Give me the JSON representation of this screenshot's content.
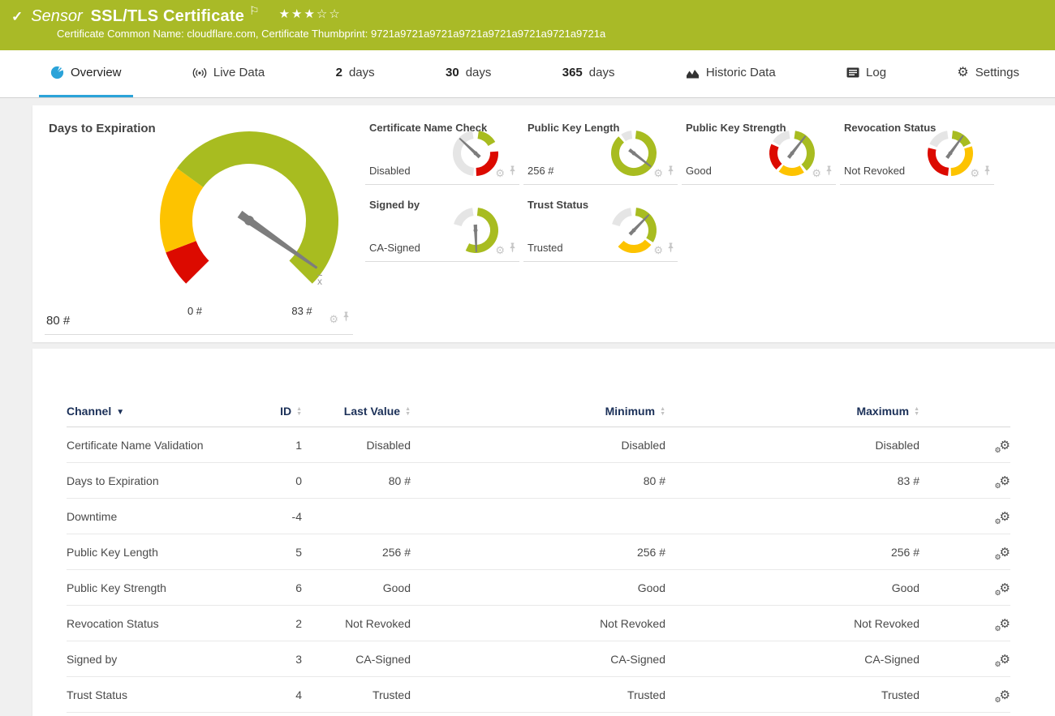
{
  "colors": {
    "header_bg": "#a9ba27",
    "accent_blue": "#2ba3d9",
    "navy": "#1b3058",
    "green": "#a8bc20",
    "yellow": "#fdc300",
    "red": "#dc0a00",
    "gray_segment": "#e5e5e5",
    "needle": "#7d7d7d"
  },
  "icons": {
    "check": "✓",
    "flag": "⚐",
    "star_filled": "★",
    "star_empty": "☆",
    "gear": "⚙",
    "sort_up": "▲",
    "sort_down": "▼"
  },
  "header": {
    "kind": "Sensor",
    "title": "SSL/TLS Certificate",
    "stars_filled": 3,
    "stars_total": 5,
    "subtitle": "Certificate Common Name: cloudflare.com, Certificate Thumbprint: 9721a9721a9721a9721a9721a9721a9721a9721a"
  },
  "tabs": [
    {
      "id": "overview",
      "icon": "gauge-icon",
      "label": "Overview",
      "active": true
    },
    {
      "id": "live-data",
      "icon": "live-data-icon",
      "label": "Live Data",
      "active": false
    },
    {
      "id": "2-days",
      "num": "2",
      "label": "days",
      "active": false
    },
    {
      "id": "30-days",
      "num": "30",
      "label": "days",
      "active": false
    },
    {
      "id": "365-days",
      "num": "365",
      "label": "days",
      "active": false
    },
    {
      "id": "historic-data",
      "icon": "historic-data-icon",
      "label": "Historic Data",
      "active": false
    },
    {
      "id": "log",
      "icon": "log-icon",
      "label": "Log",
      "active": false
    },
    {
      "id": "settings",
      "icon": "settings-icon",
      "label": "Settings",
      "active": false
    }
  ],
  "gauges": {
    "main": {
      "title": "Days to Expiration",
      "value_label": "80 #",
      "min_label": "0 #",
      "max_label": "83 #",
      "mean_label": "x",
      "needle_deg": 125,
      "segments": [
        {
          "color": "red",
          "from": -135,
          "to": -111
        },
        {
          "color": "yellow",
          "from": -111,
          "to": -54
        },
        {
          "color": "green",
          "from": -54,
          "to": 135
        }
      ]
    },
    "small": [
      {
        "title": "Certificate Name Check",
        "value": "Disabled",
        "needle_deg": -47,
        "segments": [
          {
            "color": "green",
            "from": 8,
            "to": 60
          },
          {
            "color": "red",
            "from": 85,
            "to": 178
          },
          {
            "color": "gray_segment",
            "from": 186,
            "to": 352
          }
        ]
      },
      {
        "title": "Public Key Length",
        "value": "256 #",
        "needle_deg": 128,
        "segments": [
          {
            "color": "green",
            "from": 6,
            "to": 318
          },
          {
            "color": "gray_segment",
            "from": 326,
            "to": 354
          }
        ]
      },
      {
        "title": "Public Key Strength",
        "value": "Good",
        "needle_deg": 38,
        "segments": [
          {
            "color": "green",
            "from": 8,
            "to": 140
          },
          {
            "color": "yellow",
            "from": 148,
            "to": 216
          },
          {
            "color": "red",
            "from": 224,
            "to": 294
          },
          {
            "color": "gray_segment",
            "from": 302,
            "to": 352
          }
        ]
      },
      {
        "title": "Revocation Status",
        "value": "Not Revoked",
        "needle_deg": 36,
        "segments": [
          {
            "color": "green",
            "from": 6,
            "to": 64
          },
          {
            "color": "yellow",
            "from": 72,
            "to": 178
          },
          {
            "color": "red",
            "from": 186,
            "to": 284
          },
          {
            "color": "gray_segment",
            "from": 294,
            "to": 352
          }
        ]
      },
      {
        "title": "Signed by",
        "value": "CA-Signed",
        "needle_deg": 178,
        "segments": [
          {
            "color": "green",
            "from": 6,
            "to": 206
          },
          {
            "color": "gray_segment",
            "from": 286,
            "to": 352
          }
        ]
      },
      {
        "title": "Trust Status",
        "value": "Trusted",
        "needle_deg": 44,
        "segments": [
          {
            "color": "green",
            "from": 6,
            "to": 122
          },
          {
            "color": "yellow",
            "from": 130,
            "to": 224
          },
          {
            "color": "gray_segment",
            "from": 286,
            "to": 352
          }
        ]
      }
    ]
  },
  "channel_table": {
    "columns": [
      {
        "label": "Channel",
        "sort": "active"
      },
      {
        "label": "ID",
        "sort": "neutral"
      },
      {
        "label": "Last Value",
        "sort": "neutral"
      },
      {
        "label": "Minimum",
        "sort": "neutral"
      },
      {
        "label": "Maximum",
        "sort": "neutral"
      }
    ],
    "rows": [
      {
        "channel": "Certificate Name Validation",
        "id": "1",
        "last": "Disabled",
        "min": "Disabled",
        "max": "Disabled"
      },
      {
        "channel": "Days to Expiration",
        "id": "0",
        "last": "80 #",
        "min": "80 #",
        "max": "83 #"
      },
      {
        "channel": "Downtime",
        "id": "-4",
        "last": "",
        "min": "",
        "max": ""
      },
      {
        "channel": "Public Key Length",
        "id": "5",
        "last": "256 #",
        "min": "256 #",
        "max": "256 #"
      },
      {
        "channel": "Public Key Strength",
        "id": "6",
        "last": "Good",
        "min": "Good",
        "max": "Good"
      },
      {
        "channel": "Revocation Status",
        "id": "2",
        "last": "Not Revoked",
        "min": "Not Revoked",
        "max": "Not Revoked"
      },
      {
        "channel": "Signed by",
        "id": "3",
        "last": "CA-Signed",
        "min": "CA-Signed",
        "max": "CA-Signed"
      },
      {
        "channel": "Trust Status",
        "id": "4",
        "last": "Trusted",
        "min": "Trusted",
        "max": "Trusted"
      }
    ]
  }
}
